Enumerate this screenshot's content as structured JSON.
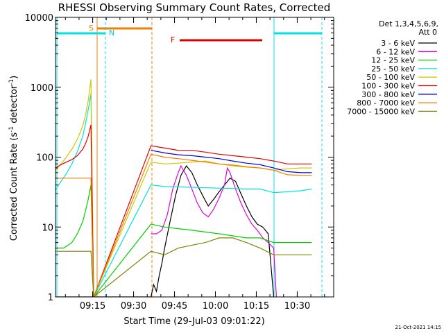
{
  "chart_data": {
    "type": "line",
    "title": "RHESSI Observing Summary Count Rates, Corrected",
    "xlabel": "Start Time (29-Jul-03 09:01:22)",
    "ylabel_main": "Corrected Count Rate (s",
    "ylabel_sup1": "-1",
    "ylabel_mid": " detector",
    "ylabel_sup2": "-1",
    "ylabel_end": ")",
    "yscale": "log",
    "ylim": [
      1,
      10000
    ],
    "xlim_minutes": [
      0,
      102
    ],
    "y_ticks": [
      {
        "value": 1,
        "label": "1"
      },
      {
        "value": 10,
        "label": "10"
      },
      {
        "value": 100,
        "label": "100"
      },
      {
        "value": 1000,
        "label": "1000"
      },
      {
        "value": 10000,
        "label": "10000"
      }
    ],
    "x_ticks": [
      {
        "minute": 13.63,
        "label": "09:15"
      },
      {
        "minute": 28.63,
        "label": "09:30"
      },
      {
        "minute": 43.63,
        "label": "09:45"
      },
      {
        "minute": 58.63,
        "label": "10:00"
      },
      {
        "minute": 73.63,
        "label": "10:15"
      },
      {
        "minute": 88.63,
        "label": "10:30"
      }
    ],
    "legend": {
      "header1": "Det 1,3,4,5,6,9,",
      "header2": "Att 0",
      "placement": "right"
    },
    "series": [
      {
        "name": "3 - 6 keV",
        "color": "#000000",
        "points": [
          [
            0,
            1
          ],
          [
            35,
            1
          ],
          [
            36,
            1.5
          ],
          [
            37,
            1.2
          ],
          [
            38,
            2
          ],
          [
            39,
            3
          ],
          [
            40,
            5
          ],
          [
            42,
            12
          ],
          [
            44,
            28
          ],
          [
            46,
            55
          ],
          [
            48,
            75
          ],
          [
            50,
            60
          ],
          [
            52,
            40
          ],
          [
            54,
            28
          ],
          [
            56,
            20
          ],
          [
            58,
            25
          ],
          [
            60,
            32
          ],
          [
            62,
            40
          ],
          [
            64,
            50
          ],
          [
            66,
            45
          ],
          [
            68,
            30
          ],
          [
            70,
            20
          ],
          [
            72,
            14
          ],
          [
            74,
            11
          ],
          [
            76,
            10
          ],
          [
            78,
            8
          ],
          [
            80,
            1
          ]
        ]
      },
      {
        "name": "6 - 12 keV",
        "color": "#e000e0",
        "points": [
          [
            35,
            8
          ],
          [
            37,
            8
          ],
          [
            39,
            9
          ],
          [
            41,
            15
          ],
          [
            43,
            35
          ],
          [
            45,
            60
          ],
          [
            46,
            75
          ],
          [
            48,
            55
          ],
          [
            50,
            35
          ],
          [
            52,
            22
          ],
          [
            54,
            16
          ],
          [
            56,
            14
          ],
          [
            58,
            18
          ],
          [
            60,
            26
          ],
          [
            62,
            40
          ],
          [
            63,
            70
          ],
          [
            64,
            60
          ],
          [
            66,
            35
          ],
          [
            68,
            22
          ],
          [
            70,
            15
          ],
          [
            72,
            11
          ],
          [
            74,
            9
          ],
          [
            76,
            7
          ],
          [
            78,
            6
          ],
          [
            80,
            5
          ],
          [
            81,
            1
          ]
        ]
      },
      {
        "name": "12 - 25 keV",
        "color": "#00d000",
        "points": [
          [
            0,
            5
          ],
          [
            3,
            5
          ],
          [
            6,
            6
          ],
          [
            8,
            8
          ],
          [
            10,
            12
          ],
          [
            11,
            17
          ],
          [
            12,
            25
          ],
          [
            13,
            40
          ],
          [
            14,
            1
          ],
          [
            35,
            11
          ],
          [
            40,
            10
          ],
          [
            50,
            9
          ],
          [
            60,
            8
          ],
          [
            70,
            7
          ],
          [
            75,
            7
          ],
          [
            80,
            6
          ],
          [
            90,
            6
          ],
          [
            94,
            6
          ]
        ]
      },
      {
        "name": "25 - 50 keV",
        "color": "#00e0e0",
        "points": [
          [
            0,
            34
          ],
          [
            2,
            45
          ],
          [
            4,
            58
          ],
          [
            6,
            80
          ],
          [
            8,
            120
          ],
          [
            10,
            200
          ],
          [
            11,
            300
          ],
          [
            12,
            480
          ],
          [
            13,
            800
          ],
          [
            14,
            1
          ],
          [
            35,
            40
          ],
          [
            40,
            38
          ],
          [
            50,
            37
          ],
          [
            60,
            36
          ],
          [
            70,
            35
          ],
          [
            75,
            35
          ],
          [
            80,
            31
          ],
          [
            85,
            32
          ],
          [
            90,
            33
          ],
          [
            94,
            35
          ]
        ]
      },
      {
        "name": "50 - 100 keV",
        "color": "#d0c800",
        "points": [
          [
            0,
            65
          ],
          [
            2,
            80
          ],
          [
            4,
            100
          ],
          [
            6,
            130
          ],
          [
            8,
            180
          ],
          [
            10,
            280
          ],
          [
            11,
            400
          ],
          [
            12,
            650
          ],
          [
            13,
            1300
          ],
          [
            14,
            1
          ],
          [
            35,
            85
          ],
          [
            40,
            80
          ],
          [
            45,
            82
          ],
          [
            50,
            85
          ],
          [
            55,
            88
          ],
          [
            60,
            80
          ],
          [
            65,
            75
          ],
          [
            70,
            72
          ],
          [
            75,
            70
          ],
          [
            80,
            65
          ],
          [
            85,
            68
          ],
          [
            90,
            70
          ],
          [
            94,
            70
          ]
        ]
      },
      {
        "name": "100 - 300 keV",
        "color": "#e00000",
        "points": [
          [
            0,
            70
          ],
          [
            2,
            78
          ],
          [
            4,
            85
          ],
          [
            6,
            92
          ],
          [
            8,
            105
          ],
          [
            10,
            130
          ],
          [
            11,
            155
          ],
          [
            12,
            200
          ],
          [
            13,
            290
          ],
          [
            14,
            1
          ],
          [
            35,
            145
          ],
          [
            40,
            135
          ],
          [
            45,
            125
          ],
          [
            50,
            125
          ],
          [
            55,
            118
          ],
          [
            60,
            110
          ],
          [
            65,
            105
          ],
          [
            70,
            100
          ],
          [
            75,
            95
          ],
          [
            80,
            88
          ],
          [
            85,
            80
          ],
          [
            90,
            80
          ],
          [
            94,
            80
          ]
        ]
      },
      {
        "name": "300 - 800 keV",
        "color": "#0000e0",
        "points": [
          [
            35,
            125
          ],
          [
            40,
            115
          ],
          [
            45,
            108
          ],
          [
            50,
            105
          ],
          [
            55,
            100
          ],
          [
            60,
            95
          ],
          [
            65,
            88
          ],
          [
            70,
            82
          ],
          [
            75,
            78
          ],
          [
            80,
            70
          ],
          [
            85,
            62
          ],
          [
            90,
            60
          ],
          [
            94,
            60
          ]
        ]
      },
      {
        "name": "800 - 7000 keV",
        "color": "#f08000",
        "points": [
          [
            0,
            50
          ],
          [
            13,
            50
          ],
          [
            14,
            1
          ],
          [
            35,
            110
          ],
          [
            40,
            100
          ],
          [
            45,
            95
          ],
          [
            50,
            90
          ],
          [
            55,
            85
          ],
          [
            60,
            80
          ],
          [
            65,
            77
          ],
          [
            70,
            73
          ],
          [
            75,
            70
          ],
          [
            80,
            65
          ],
          [
            85,
            56
          ],
          [
            90,
            55
          ],
          [
            94,
            55
          ]
        ]
      },
      {
        "name": "7000 - 15000 keV",
        "color": "#808000",
        "points": [
          [
            0,
            4.5
          ],
          [
            13,
            4.5
          ],
          [
            14,
            1
          ],
          [
            35,
            4.5
          ],
          [
            40,
            4
          ],
          [
            45,
            5
          ],
          [
            50,
            5.5
          ],
          [
            55,
            6
          ],
          [
            60,
            7
          ],
          [
            65,
            7
          ],
          [
            70,
            6
          ],
          [
            75,
            5
          ],
          [
            80,
            4
          ],
          [
            85,
            4
          ],
          [
            90,
            4
          ],
          [
            94,
            4
          ]
        ]
      }
    ],
    "annotations": [
      {
        "text": "S",
        "color": "#f08000"
      },
      {
        "text": "N",
        "color": "#00c8e0"
      },
      {
        "text": "F",
        "color": "#e00000"
      }
    ],
    "timestamp": "21-Oct-2021 14:15"
  }
}
